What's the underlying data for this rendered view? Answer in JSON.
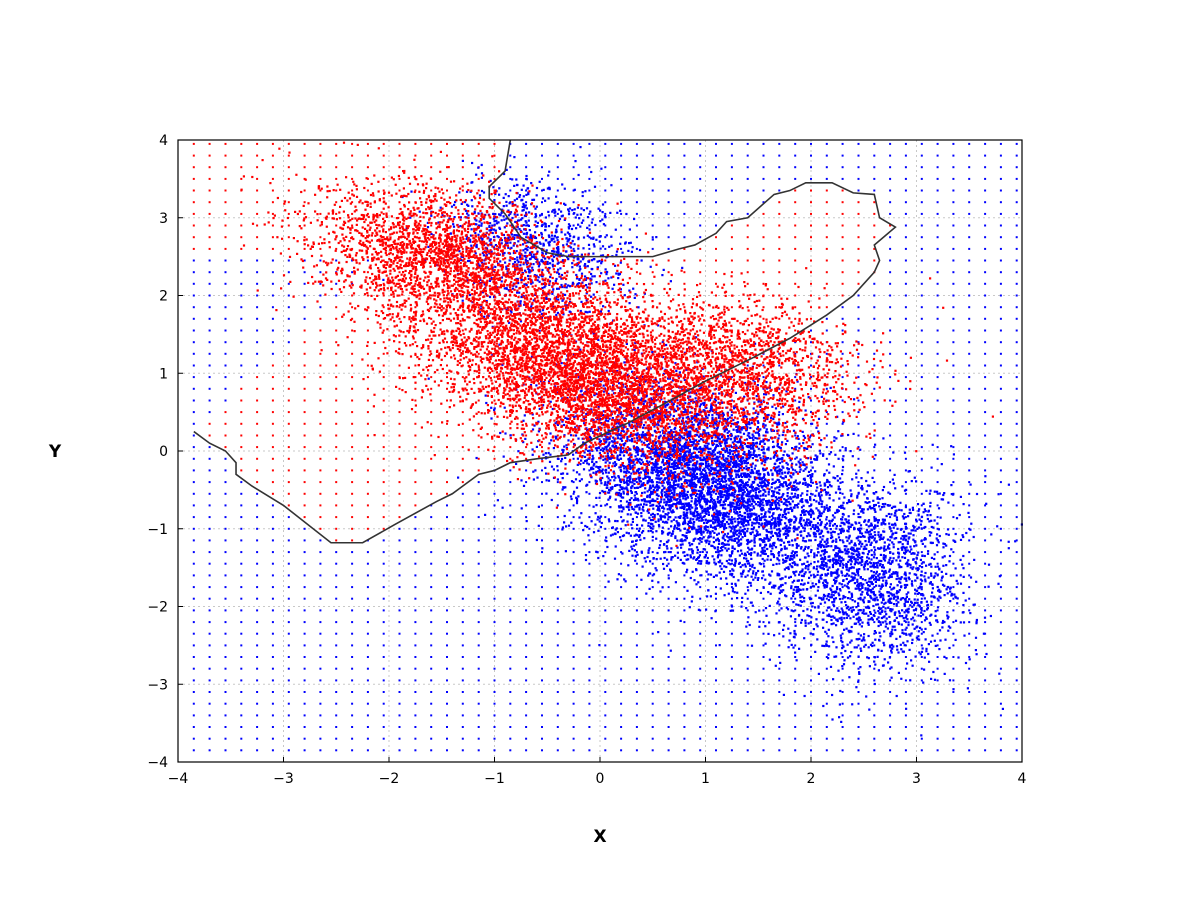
{
  "chart_data": {
    "type": "scatter",
    "title": "",
    "xlabel": "X",
    "ylabel": "Y",
    "xlim": [
      -4,
      4
    ],
    "ylim": [
      -4,
      4
    ],
    "xticks": [
      -4,
      -3,
      -2,
      -1,
      0,
      1,
      2,
      3,
      4
    ],
    "yticks": [
      -4,
      -3,
      -2,
      -1,
      0,
      1,
      2,
      3,
      4
    ],
    "xtick_labels": [
      "−4",
      "−3",
      "−2",
      "−1",
      "0",
      "1",
      "2",
      "3",
      "4"
    ],
    "ytick_labels": [
      "−4",
      "−3",
      "−2",
      "−1",
      "0",
      "1",
      "2",
      "3",
      "4"
    ],
    "grid": true,
    "legend": "none",
    "colors": {
      "red_class": "#ff0000",
      "blue_class": "#0000ff",
      "boundary": "#333333"
    },
    "clusters": [
      {
        "class": "red",
        "center": [
          -1.5,
          2.5
        ],
        "std": [
          0.6,
          0.45
        ],
        "rho": -0.3,
        "count": 2200
      },
      {
        "class": "red",
        "center": [
          -0.1,
          1.0
        ],
        "std": [
          0.8,
          0.6
        ],
        "rho": -0.45,
        "count": 5200
      },
      {
        "class": "red",
        "center": [
          1.4,
          1.1
        ],
        "std": [
          0.55,
          0.45
        ],
        "rho": -0.2,
        "count": 1300
      },
      {
        "class": "blue",
        "center": [
          -0.6,
          2.6
        ],
        "std": [
          0.45,
          0.45
        ],
        "rho": -0.2,
        "count": 1000
      },
      {
        "class": "blue",
        "center": [
          1.0,
          -0.4
        ],
        "std": [
          0.65,
          0.65
        ],
        "rho": -0.4,
        "count": 5200
      },
      {
        "class": "blue",
        "center": [
          2.6,
          -1.6
        ],
        "std": [
          0.45,
          0.6
        ],
        "rho": 0.0,
        "count": 1800
      }
    ],
    "grid_points": {
      "spacing": 0.15,
      "start": -3.85,
      "end": 3.95
    },
    "decision_boundary": [
      [
        -3.85,
        0.25
      ],
      [
        -3.7,
        0.1
      ],
      [
        -3.55,
        0.0
      ],
      [
        -3.45,
        -0.15
      ],
      [
        -3.45,
        -0.3
      ],
      [
        -3.3,
        -0.45
      ],
      [
        -3.0,
        -0.7
      ],
      [
        -2.55,
        -1.18
      ],
      [
        -2.25,
        -1.18
      ],
      [
        -1.95,
        -0.95
      ],
      [
        -1.55,
        -0.65
      ],
      [
        -1.4,
        -0.55
      ],
      [
        -1.3,
        -0.45
      ],
      [
        -1.15,
        -0.3
      ],
      [
        -1.0,
        -0.25
      ],
      [
        -0.85,
        -0.15
      ],
      [
        -0.6,
        -0.1
      ],
      [
        -0.3,
        -0.05
      ],
      [
        -0.15,
        0.1
      ],
      [
        0.25,
        0.35
      ],
      [
        0.6,
        0.6
      ],
      [
        1.0,
        0.9
      ],
      [
        1.45,
        1.2
      ],
      [
        1.8,
        1.45
      ],
      [
        2.15,
        1.75
      ],
      [
        2.4,
        2.0
      ],
      [
        2.6,
        2.3
      ],
      [
        2.65,
        2.45
      ],
      [
        2.6,
        2.65
      ],
      [
        2.8,
        2.88
      ],
      [
        2.65,
        3.0
      ],
      [
        2.6,
        3.3
      ],
      [
        2.4,
        3.32
      ],
      [
        2.2,
        3.45
      ],
      [
        1.95,
        3.45
      ],
      [
        1.8,
        3.35
      ],
      [
        1.65,
        3.3
      ],
      [
        1.4,
        3.0
      ],
      [
        1.2,
        2.95
      ],
      [
        1.1,
        2.8
      ],
      [
        0.9,
        2.65
      ],
      [
        0.75,
        2.6
      ],
      [
        0.5,
        2.5
      ],
      [
        0.1,
        2.5
      ],
      [
        -0.3,
        2.5
      ],
      [
        -0.5,
        2.55
      ],
      [
        -0.75,
        2.75
      ],
      [
        -0.9,
        3.05
      ],
      [
        -1.05,
        3.25
      ],
      [
        -1.05,
        3.4
      ],
      [
        -0.9,
        3.6
      ],
      [
        -0.85,
        4.0
      ]
    ]
  }
}
